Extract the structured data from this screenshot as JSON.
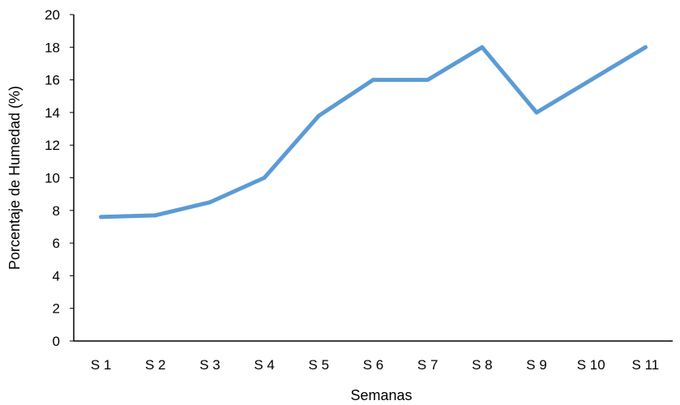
{
  "chart_data": {
    "type": "line",
    "title": "",
    "xlabel": "Semanas",
    "ylabel": "Porcentaje de Humedad (%)",
    "ylim": [
      0,
      20
    ],
    "yticks": [
      0,
      2,
      4,
      6,
      8,
      10,
      12,
      14,
      16,
      18,
      20
    ],
    "categories": [
      "S 1",
      "S 2",
      "S 3",
      "S 4",
      "S 5",
      "S 6",
      "S 7",
      "S 8",
      "S 9",
      "S 10",
      "S 11"
    ],
    "series": [
      {
        "values": [
          7.6,
          7.7,
          8.5,
          10.0,
          13.8,
          16.0,
          16.0,
          18.0,
          14.0,
          16.0,
          18.0
        ],
        "color": "#5B9BD5"
      }
    ],
    "grid": false,
    "legend": "none"
  }
}
